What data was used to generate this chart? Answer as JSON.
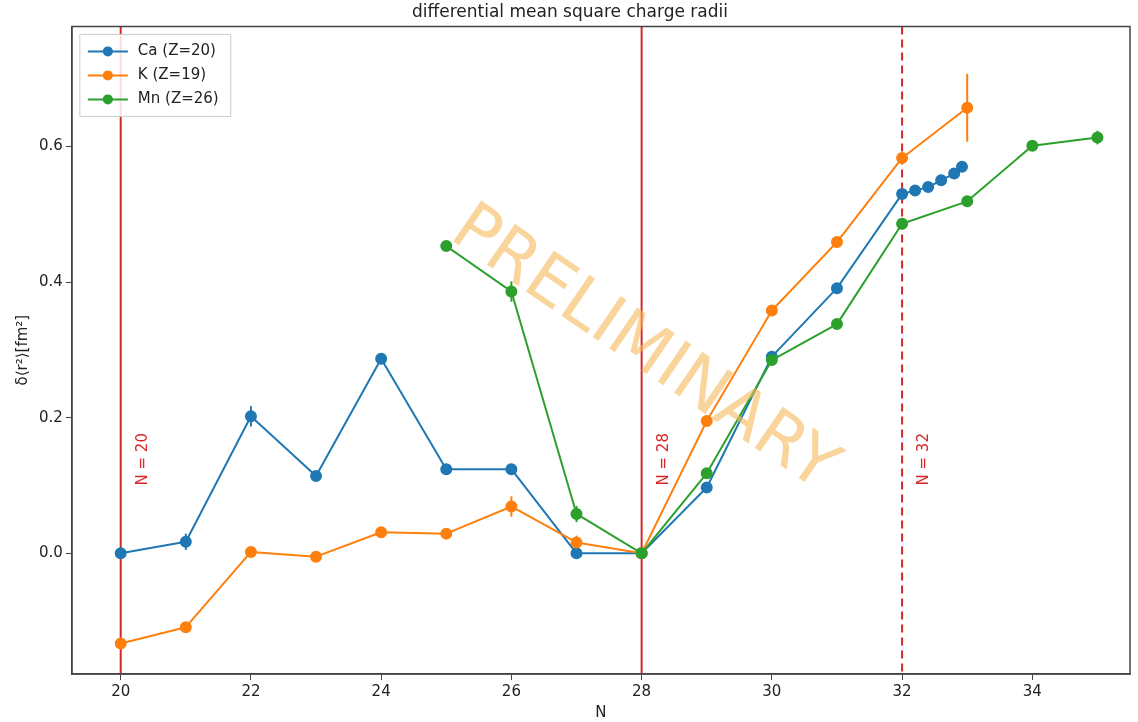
{
  "chart_data": {
    "type": "line",
    "title": "differential mean square charge radii",
    "xlabel": "N",
    "ylabel": "δ⟨r²⟩[fm²]",
    "xlim": [
      19.25,
      35.5
    ],
    "xticks": [
      20,
      22,
      24,
      26,
      28,
      30,
      32,
      34
    ],
    "ylim": [
      -0.178,
      0.777
    ],
    "yticks": [
      {
        "value": 0,
        "label": "0.0"
      },
      {
        "value": 0.2,
        "label": "0.2"
      },
      {
        "value": 0.4,
        "label": "0.4"
      },
      {
        "value": 0.6,
        "label": "0.6"
      }
    ],
    "grid": false,
    "legend": "top left",
    "marker": "circle",
    "line_style": "solid",
    "series": [
      {
        "name": "Ca (Z=20)",
        "color": "#1f77b4",
        "x": [
          20,
          21,
          22,
          23,
          24,
          25,
          26,
          27,
          28,
          29,
          30,
          31,
          32,
          32.2,
          32.4,
          32.6,
          32.8,
          32.92
        ],
        "values": [
          0.0,
          0.017,
          0.202,
          0.114,
          0.287,
          0.124,
          0.124,
          0.0,
          0.0,
          0.097,
          0.29,
          0.391,
          0.53,
          0.535,
          0.54,
          0.55,
          0.56,
          0.57
        ],
        "errors": [
          null,
          0.012,
          0.015,
          null,
          null,
          null,
          null,
          null,
          null,
          null,
          null,
          null,
          null,
          null,
          null,
          null,
          null,
          null
        ]
      },
      {
        "name": "K (Z=19)",
        "color": "#ff7f0e",
        "x": [
          20,
          21,
          22,
          23,
          24,
          25,
          26,
          27,
          28,
          29,
          30,
          31,
          32,
          33
        ],
        "values": [
          -0.133,
          -0.109,
          0.002,
          -0.005,
          0.031,
          0.029,
          0.069,
          0.016,
          0.0,
          0.195,
          0.358,
          0.459,
          0.583,
          0.657
        ],
        "errors": [
          null,
          null,
          null,
          null,
          null,
          null,
          0.015,
          0.01,
          null,
          null,
          null,
          null,
          null,
          0.05
        ]
      },
      {
        "name": "Mn (Z=26)",
        "color": "#2ca02c",
        "x": [
          25,
          26,
          27,
          28,
          29,
          30,
          31,
          32,
          33,
          34,
          35
        ],
        "values": [
          0.453,
          0.386,
          0.058,
          0.0,
          0.118,
          0.285,
          0.338,
          0.486,
          0.519,
          0.601,
          0.613
        ],
        "errors": [
          null,
          0.015,
          0.012,
          null,
          null,
          null,
          null,
          null,
          null,
          null,
          0.01
        ]
      }
    ],
    "ref_lines": [
      {
        "axis": "x",
        "value": 20,
        "label": "N = 20",
        "color": "#d62728",
        "line_style": "solid"
      },
      {
        "axis": "x",
        "value": 28,
        "label": "N = 28",
        "color": "#d62728",
        "line_style": "solid"
      },
      {
        "axis": "x",
        "value": 32,
        "label": "N = 32",
        "color": "#d62728",
        "line_style": "dashed"
      }
    ],
    "annotations": [
      "PRELIMINARY"
    ]
  }
}
